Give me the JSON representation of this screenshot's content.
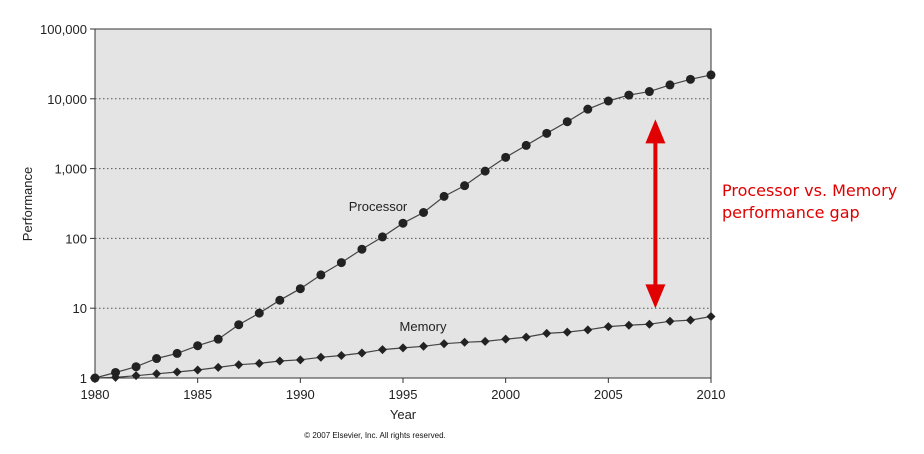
{
  "chart_data": {
    "type": "line",
    "ylabel": "Performance",
    "xlabel": "Year",
    "yscale": "log",
    "ylim": [
      1,
      100000
    ],
    "xlim": [
      1980,
      2010
    ],
    "grid": "horizontal-dotted",
    "x_ticks": [
      "1980",
      "1985",
      "1990",
      "1995",
      "2000",
      "2005",
      "2010"
    ],
    "y_ticks": [
      "1",
      "10",
      "100",
      "1,000",
      "10,000",
      "100,000"
    ],
    "background_color": "#e4e4e4",
    "series": [
      {
        "name": "Processor",
        "marker": "circle",
        "x": [
          1980,
          1981,
          1982,
          1983,
          1984,
          1985,
          1986,
          1987,
          1988,
          1989,
          1990,
          1991,
          1992,
          1993,
          1994,
          1995,
          1996,
          1997,
          1998,
          1999,
          2000,
          2001,
          2002,
          2003,
          2004,
          2005,
          2006,
          2007,
          2008,
          2009,
          2010
        ],
        "values": [
          1,
          1.2,
          1.45,
          1.9,
          2.25,
          2.9,
          3.6,
          5.8,
          8.5,
          13,
          19,
          30,
          45,
          70,
          105,
          165,
          235,
          400,
          570,
          920,
          1450,
          2150,
          3200,
          4700,
          7100,
          9300,
          11300,
          12700,
          15800,
          19000,
          22000
        ]
      },
      {
        "name": "Memory",
        "marker": "diamond",
        "x": [
          1980,
          1981,
          1982,
          1983,
          1984,
          1985,
          1986,
          1987,
          1988,
          1989,
          1990,
          1991,
          1992,
          1993,
          1994,
          1995,
          1996,
          1997,
          1998,
          1999,
          2000,
          2001,
          2002,
          2003,
          2004,
          2005,
          2006,
          2007,
          2008,
          2009,
          2010
        ],
        "values": [
          1,
          1.02,
          1.08,
          1.15,
          1.22,
          1.3,
          1.42,
          1.55,
          1.62,
          1.75,
          1.82,
          1.98,
          2.1,
          2.28,
          2.55,
          2.7,
          2.85,
          3.1,
          3.25,
          3.35,
          3.6,
          3.85,
          4.35,
          4.55,
          4.9,
          5.45,
          5.7,
          5.9,
          6.5,
          6.75,
          7.6
        ]
      }
    ],
    "annotation": {
      "lines": [
        "Processor vs. Memory",
        "performance gap"
      ],
      "color": "#e00000",
      "arrow_from": 12800,
      "arrow_to": 5.5,
      "arrow_year": 2007
    },
    "copyright": "© 2007 Elsevier, Inc. All rights reserved."
  }
}
